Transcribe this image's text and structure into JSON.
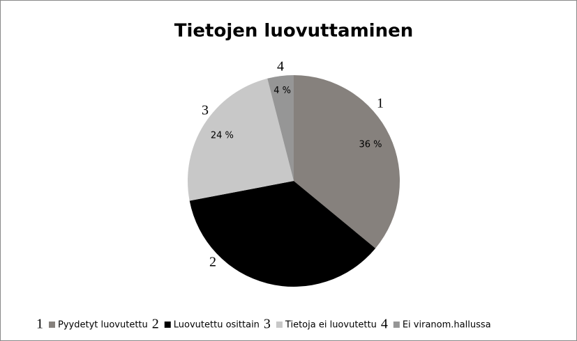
{
  "chart_data": {
    "type": "pie",
    "title": "Tietojen luovuttaminen",
    "categories": [
      "Pyydetyt luovutettu",
      "Luovutettu osittain",
      "Tietoja ei luovutettu",
      "Ei viranom.hallussa"
    ],
    "slice_numbers": [
      "1",
      "2",
      "3",
      "4"
    ],
    "values": [
      36,
      36,
      24,
      4
    ],
    "value_labels": [
      "36 %",
      null,
      "24 %",
      "4 %"
    ],
    "colors": [
      "#86817d",
      "#000000",
      "#c8c8c8",
      "#969696"
    ],
    "legend": "bottom"
  }
}
